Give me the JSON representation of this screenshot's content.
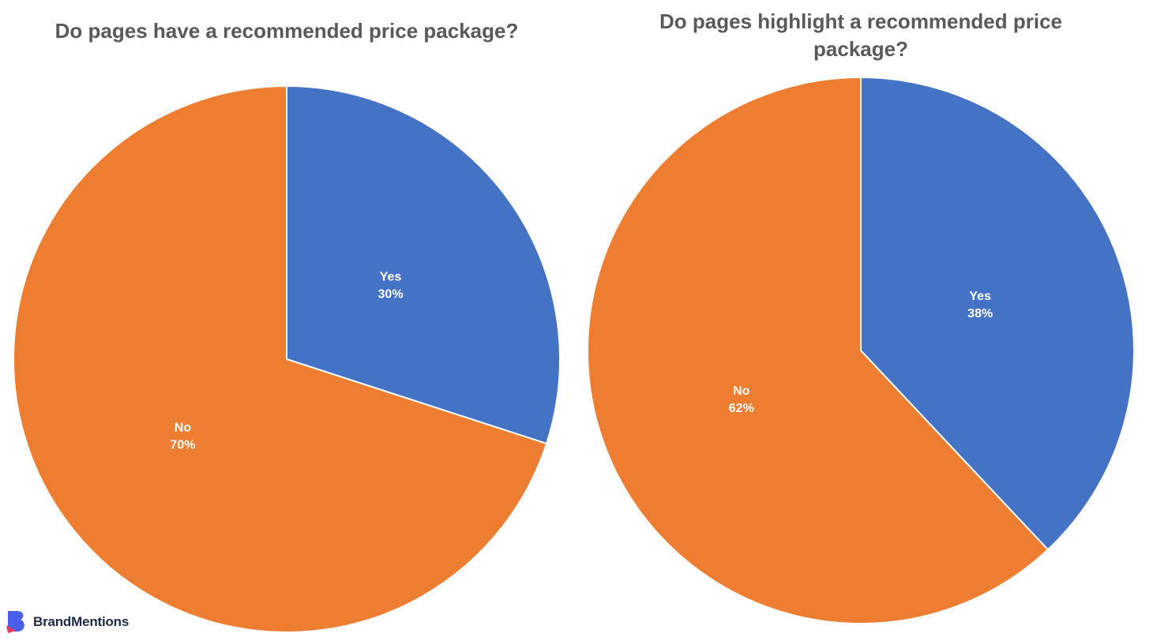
{
  "chart_data": [
    {
      "type": "pie",
      "title": "Do pages have a recommended price package?",
      "slices": [
        {
          "label": "Yes",
          "value": 30,
          "value_label": "30%",
          "color": "#4472C4"
        },
        {
          "label": "No",
          "value": 70,
          "value_label": "70%",
          "color": "#ED7D31"
        }
      ],
      "start_angle_deg": 0,
      "direction": "clockwise",
      "legend": "none"
    },
    {
      "type": "pie",
      "title": "Do pages highlight a recommended price package?",
      "slices": [
        {
          "label": "Yes",
          "value": 38,
          "value_label": "38%",
          "color": "#4472C4"
        },
        {
          "label": "No",
          "value": 62,
          "value_label": "62%",
          "color": "#ED7D31"
        }
      ],
      "start_angle_deg": 0,
      "direction": "clockwise",
      "legend": "none"
    }
  ],
  "brand": {
    "name": "BrandMentions",
    "logo_icon": "brandmentions-logo-icon",
    "logo_colors": [
      "#4b5ee8",
      "#e8375f"
    ]
  }
}
